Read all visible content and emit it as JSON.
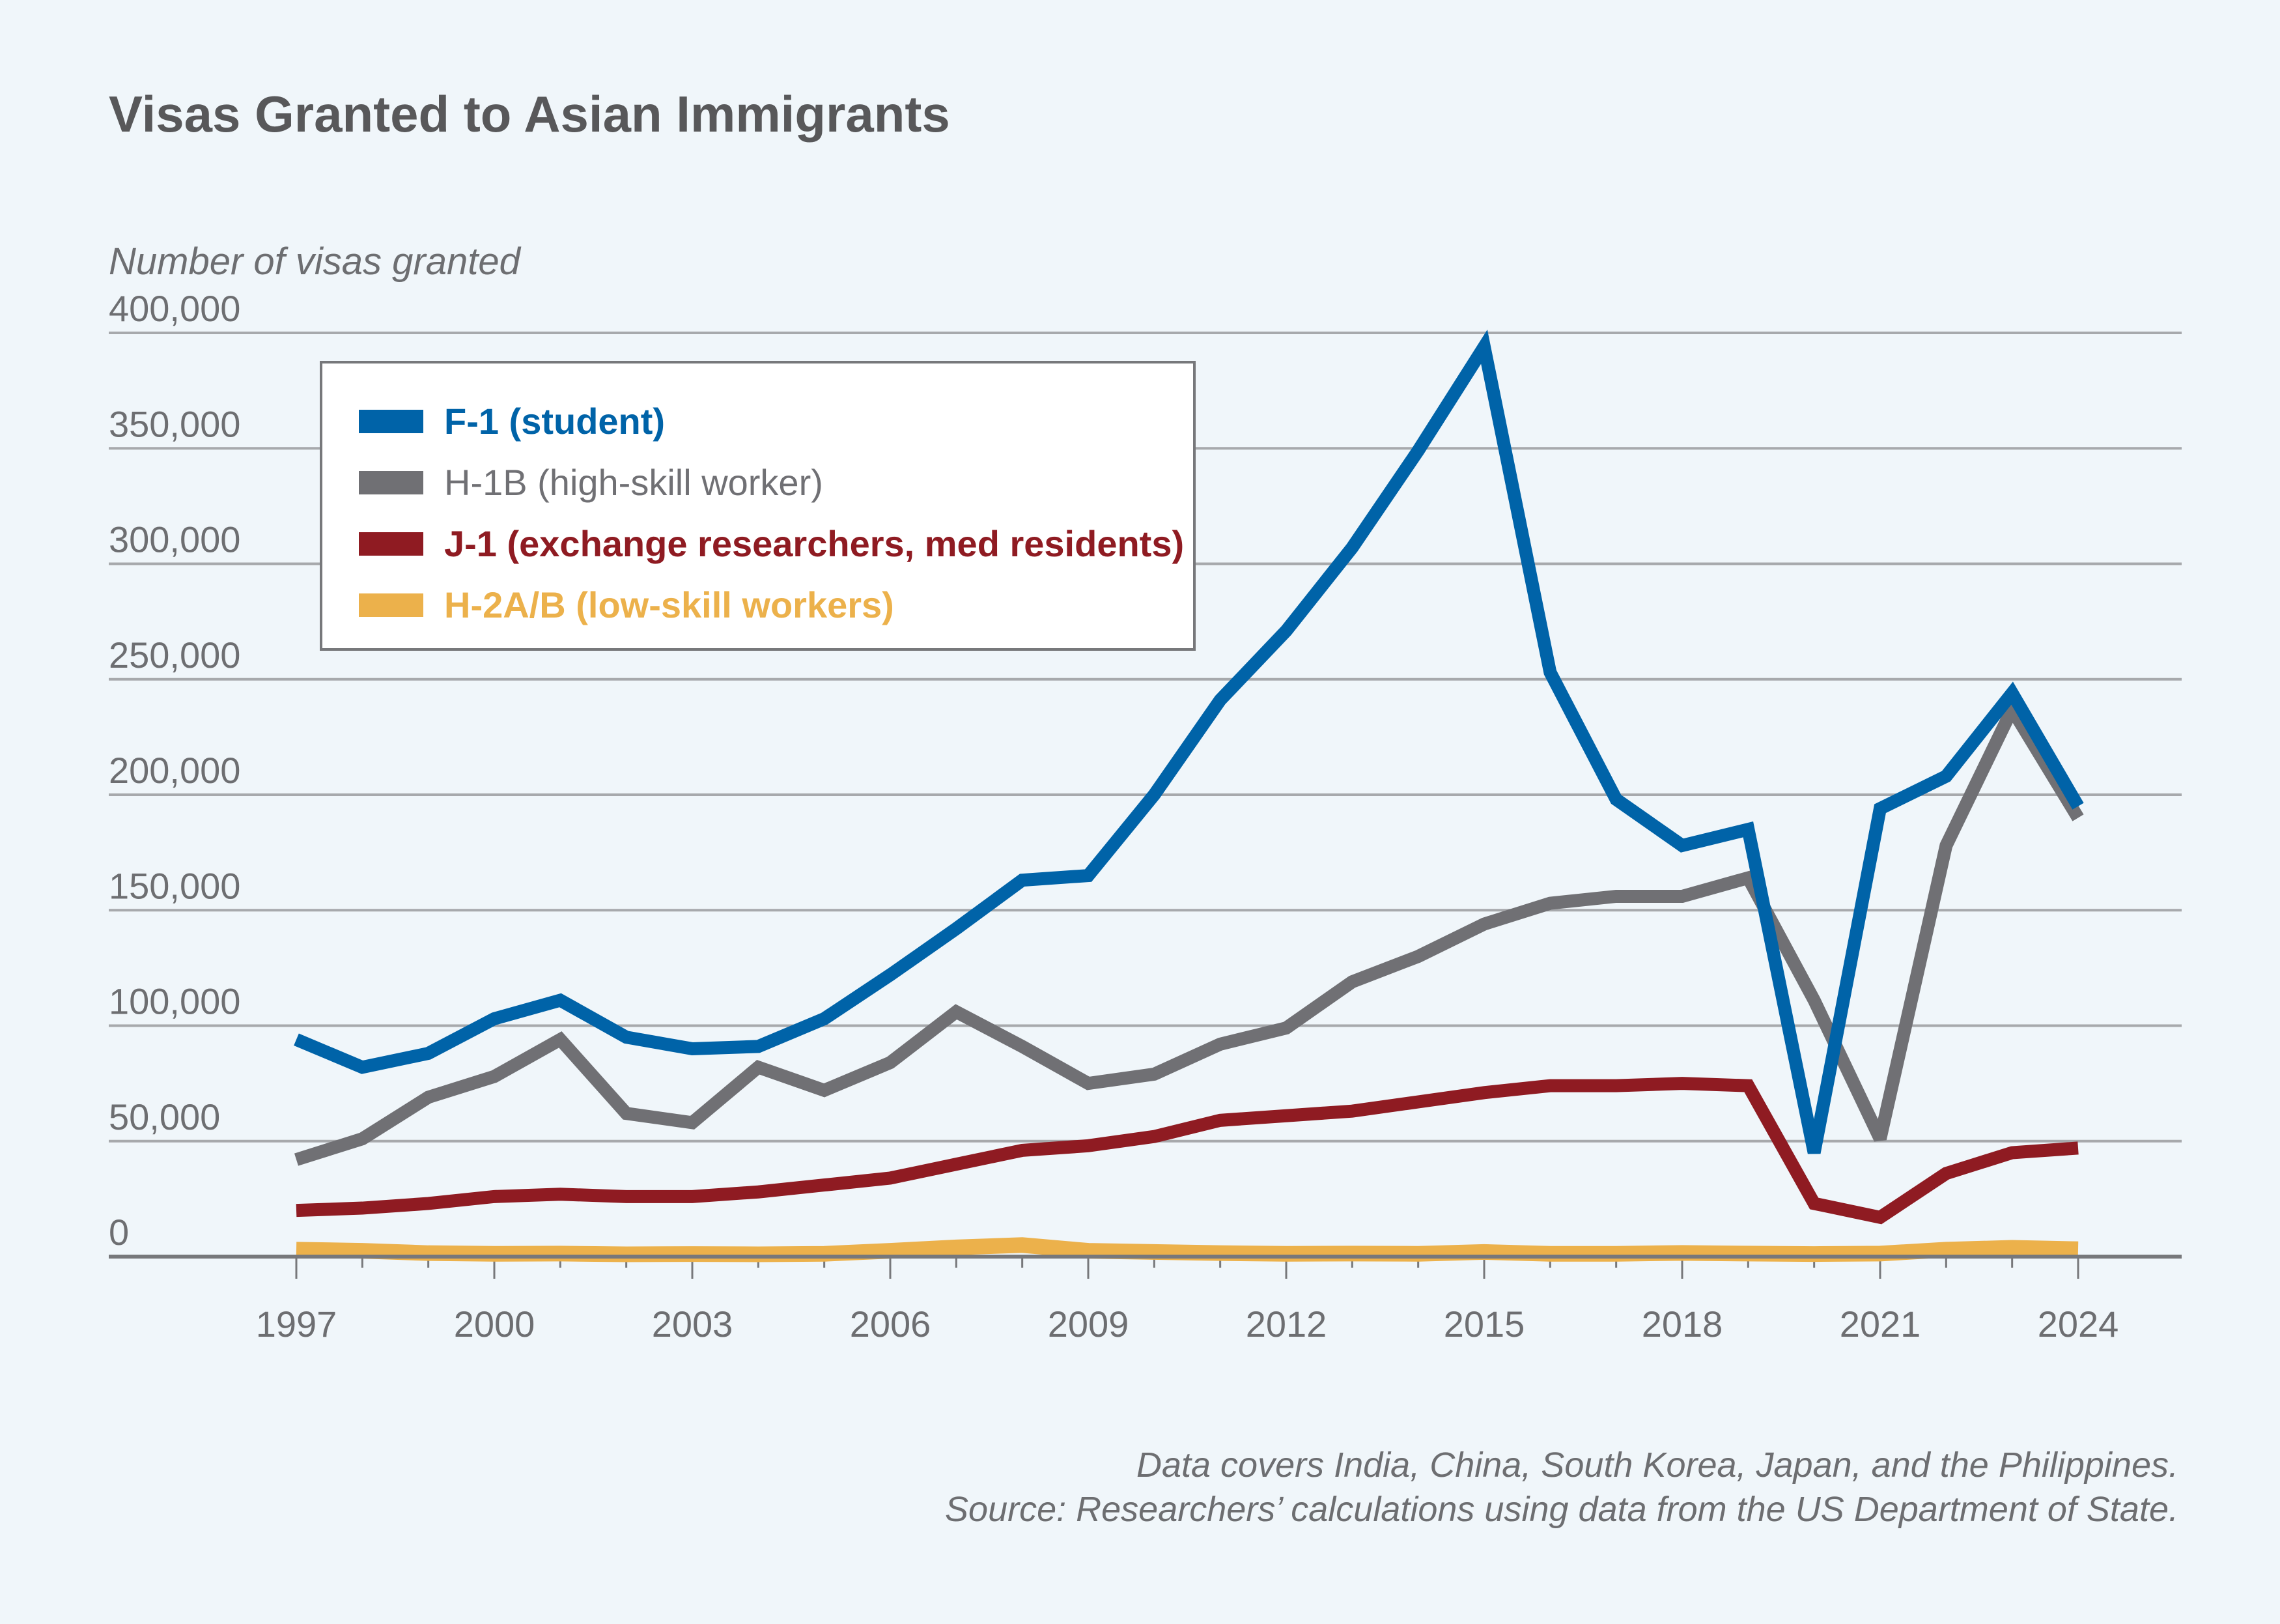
{
  "chart_data": {
    "type": "line",
    "title": "Visas Granted to Asian Immigrants",
    "ylabel": "Number of visas granted",
    "xlabel": "",
    "ylim": [
      0,
      400000
    ],
    "yticks": [
      "0",
      "50,000",
      "100,000",
      "150,000",
      "200,000",
      "250,000",
      "300,000",
      "350,000",
      "400,000"
    ],
    "ytick_values": [
      0,
      50000,
      100000,
      150000,
      200000,
      250000,
      300000,
      350000,
      400000
    ],
    "xlim": [
      1997,
      2024
    ],
    "xticks": [
      "1997",
      "2000",
      "2003",
      "2006",
      "2009",
      "2012",
      "2015",
      "2018",
      "2021",
      "2024"
    ],
    "grid": "horizontal",
    "legend_position": "top-left",
    "x": [
      1997,
      1998,
      1999,
      2000,
      2001,
      2002,
      2003,
      2004,
      2005,
      2006,
      2007,
      2008,
      2009,
      2010,
      2011,
      2012,
      2013,
      2014,
      2015,
      2016,
      2017,
      2018,
      2019,
      2020,
      2021,
      2022,
      2023,
      2024
    ],
    "series": [
      {
        "name": "F-1 (student)",
        "color": "#0063a8",
        "values": [
          94000,
          82000,
          88000,
          103000,
          111000,
          95000,
          90000,
          91000,
          103000,
          122000,
          142000,
          163000,
          165000,
          200000,
          241000,
          271000,
          307000,
          349000,
          394000,
          253000,
          198000,
          178000,
          185000,
          45000,
          194000,
          208000,
          244000,
          195000
        ]
      },
      {
        "name": "H-1B (high-skill worker)",
        "color": "#707074",
        "values": [
          42000,
          51000,
          69000,
          78000,
          94000,
          62000,
          58000,
          82000,
          72000,
          84000,
          106000,
          91000,
          75000,
          79000,
          92000,
          99000,
          119000,
          130000,
          144000,
          153000,
          156000,
          156000,
          164000,
          111000,
          51000,
          178000,
          237000,
          190000
        ]
      },
      {
        "name": "J-1 (exchange researchers, med residents)",
        "color": "#8f1b22",
        "values": [
          20000,
          21000,
          23000,
          26000,
          27000,
          26000,
          26000,
          28000,
          31000,
          34000,
          40000,
          46000,
          48000,
          52000,
          59000,
          61000,
          63000,
          67000,
          71000,
          74000,
          74000,
          75000,
          74000,
          23000,
          17000,
          36000,
          45000,
          47000
        ]
      },
      {
        "name": "H-2A/B (low-skill workers)",
        "color": "#ecb14b",
        "values": [
          3000,
          2500,
          1500,
          1200,
          1300,
          1000,
          1100,
          1000,
          1200,
          2500,
          4000,
          5000,
          2500,
          2000,
          1500,
          1200,
          1300,
          1200,
          2000,
          1200,
          1200,
          1600,
          1300,
          1100,
          1300,
          3000,
          3800,
          3200
        ]
      }
    ],
    "notes": [
      "Data covers India, China, South Korea, Japan, and the Philippines.",
      "Source: Researchers’ calculations using data from the US Department of State."
    ]
  }
}
